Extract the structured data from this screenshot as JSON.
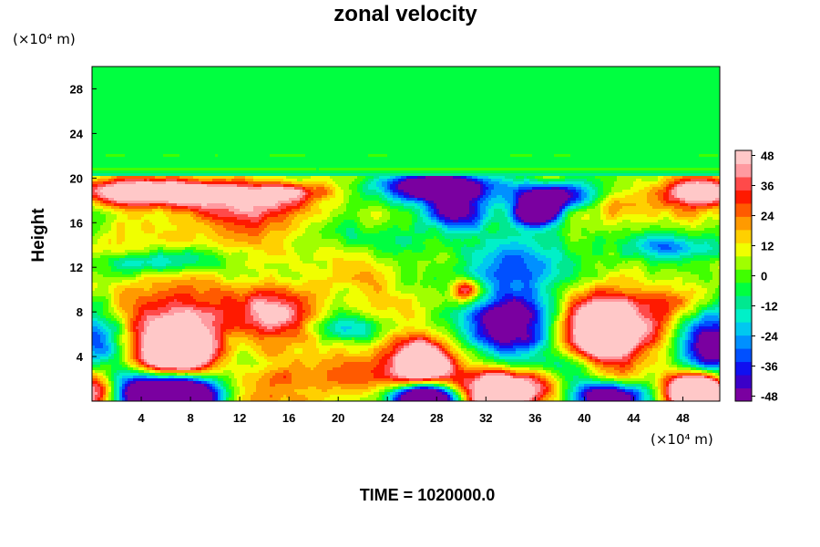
{
  "chart_data": {
    "type": "heatmap",
    "title": "zonal velocity",
    "ylabel": "Height",
    "xlabel": "",
    "x_unit": "(×10⁴ m)",
    "y_unit": "(×10⁴ m)",
    "x_ticks": [
      4,
      8,
      12,
      16,
      20,
      24,
      28,
      32,
      36,
      40,
      44,
      48
    ],
    "y_ticks": [
      4,
      8,
      12,
      16,
      20,
      24,
      28
    ],
    "xlim": [
      0,
      51
    ],
    "ylim": [
      0,
      30
    ],
    "colorbar": {
      "ticks": [
        48,
        36,
        24,
        12,
        0,
        -12,
        -24,
        -36,
        -48
      ],
      "range": [
        -50,
        50
      ]
    },
    "footer": "TIME = 1020000.0",
    "features": [
      {
        "x": 0.0,
        "y": 0.5,
        "v": 55,
        "sx": 2.0,
        "sy": 2.0
      },
      {
        "x": 6.5,
        "y": 0.5,
        "v": -140,
        "sx": 4.0,
        "sy": 2.0
      },
      {
        "x": 13.0,
        "y": 1.5,
        "v": 25,
        "sx": 4.5,
        "sy": 2.5
      },
      {
        "x": 7.0,
        "y": 4.2,
        "v": 80,
        "sx": 3.2,
        "sy": 2.5
      },
      {
        "x": 7.0,
        "y": 8.0,
        "v": 30,
        "sx": 9.0,
        "sy": 3.0
      },
      {
        "x": 14.5,
        "y": 7.5,
        "v": 35,
        "sx": 2.2,
        "sy": 2.0
      },
      {
        "x": 0.5,
        "y": 6.0,
        "v": -45,
        "sx": 2.2,
        "sy": 3.0
      },
      {
        "x": 11.5,
        "y": 3.5,
        "v": -20,
        "sx": 3.0,
        "sy": 2.0
      },
      {
        "x": 27.0,
        "y": 3.5,
        "v": 75,
        "sx": 2.5,
        "sy": 2.0
      },
      {
        "x": 27.0,
        "y": 0.3,
        "v": -100,
        "sx": 2.5,
        "sy": 1.3
      },
      {
        "x": 22.0,
        "y": 2.5,
        "v": 15,
        "sx": 3.5,
        "sy": 2.5
      },
      {
        "x": 21.0,
        "y": 6.5,
        "v": -30,
        "sx": 2.0,
        "sy": 1.2
      },
      {
        "x": 33.5,
        "y": 1.0,
        "v": 75,
        "sx": 3.5,
        "sy": 1.8
      },
      {
        "x": 34.0,
        "y": 7.0,
        "v": -75,
        "sx": 3.5,
        "sy": 3.0
      },
      {
        "x": 30.5,
        "y": 10.0,
        "v": 45,
        "sx": 1.2,
        "sy": 1.0
      },
      {
        "x": 28.5,
        "y": 13.0,
        "v": 20,
        "sx": 2.0,
        "sy": 1.5
      },
      {
        "x": 41.5,
        "y": 6.2,
        "v": 95,
        "sx": 3.2,
        "sy": 2.8
      },
      {
        "x": 42.0,
        "y": 0.3,
        "v": -80,
        "sx": 3.0,
        "sy": 1.3
      },
      {
        "x": 38.5,
        "y": 3.0,
        "v": -25,
        "sx": 2.5,
        "sy": 2.0
      },
      {
        "x": 50.5,
        "y": 5.0,
        "v": -65,
        "sx": 2.5,
        "sy": 3.0
      },
      {
        "x": 49.0,
        "y": 1.0,
        "v": 110,
        "sx": 2.2,
        "sy": 1.6
      },
      {
        "x": 46.5,
        "y": 8.5,
        "v": 15,
        "sx": 3.0,
        "sy": 2.5
      },
      {
        "x": 28.0,
        "y": 19.2,
        "v": -85,
        "sx": 4.5,
        "sy": 1.2
      },
      {
        "x": 29.5,
        "y": 17.0,
        "v": -60,
        "sx": 2.5,
        "sy": 1.5
      },
      {
        "x": 36.0,
        "y": 17.0,
        "v": -90,
        "sx": 1.8,
        "sy": 1.3
      },
      {
        "x": 37.5,
        "y": 18.5,
        "v": -55,
        "sx": 3.5,
        "sy": 1.2
      },
      {
        "x": 34.5,
        "y": 12.5,
        "v": -35,
        "sx": 6.0,
        "sy": 2.2
      },
      {
        "x": 24.0,
        "y": 14.5,
        "v": -15,
        "sx": 6.0,
        "sy": 2.0
      },
      {
        "x": 47.0,
        "y": 13.8,
        "v": -35,
        "sx": 4.0,
        "sy": 1.2
      },
      {
        "x": 5.0,
        "y": 12.5,
        "v": -25,
        "sx": 6.0,
        "sy": 1.0
      },
      {
        "x": 5.0,
        "y": 18.8,
        "v": 60,
        "sx": 7.0,
        "sy": 1.2
      },
      {
        "x": 13.0,
        "y": 17.5,
        "v": 30,
        "sx": 5.0,
        "sy": 1.5
      },
      {
        "x": 16.0,
        "y": 18.8,
        "v": 25,
        "sx": 4.0,
        "sy": 0.8
      },
      {
        "x": 49.5,
        "y": 18.8,
        "v": 55,
        "sx": 3.0,
        "sy": 1.2
      },
      {
        "x": 44.0,
        "y": 17.5,
        "v": 15,
        "sx": 5.0,
        "sy": 1.5
      },
      {
        "x": 10.0,
        "y": 15.0,
        "v": 10,
        "sx": 6.0,
        "sy": 2.0
      },
      {
        "x": 19.0,
        "y": 11.0,
        "v": 10,
        "sx": 5.0,
        "sy": 2.0
      }
    ]
  }
}
